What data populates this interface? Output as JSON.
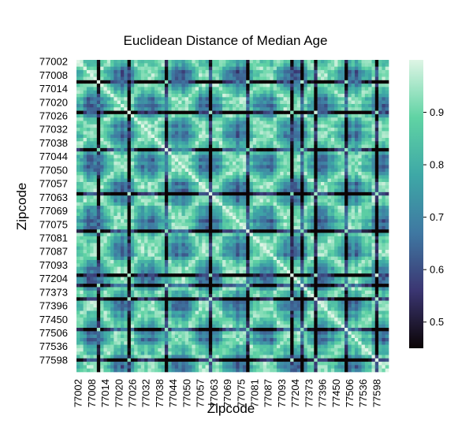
{
  "chart_data": {
    "type": "heatmap",
    "title": "Euclidean Distance of Median Age",
    "xlabel": "Zipcode",
    "ylabel": "Zipcode",
    "tick_labels": [
      "77002",
      "77008",
      "77014",
      "77020",
      "77026",
      "77032",
      "77038",
      "77044",
      "77050",
      "77057",
      "77063",
      "77069",
      "77075",
      "77081",
      "77087",
      "77093",
      "77204",
      "77373",
      "77396",
      "77450",
      "77506",
      "77536",
      "77598"
    ],
    "colorbar": {
      "ticks": [
        0.5,
        0.6,
        0.7,
        0.8,
        0.9
      ],
      "tick_labels": [
        "0.5",
        "0.6",
        "0.7",
        "0.8",
        "0.9"
      ],
      "range": [
        0.45,
        1.0
      ],
      "colormap": [
        "#0b0405",
        "#3b3672",
        "#3f78a2",
        "#3ea8a6",
        "#60d3a4",
        "#def5e5"
      ]
    },
    "value_range": [
      0.45,
      1.0
    ],
    "grid": false
  }
}
